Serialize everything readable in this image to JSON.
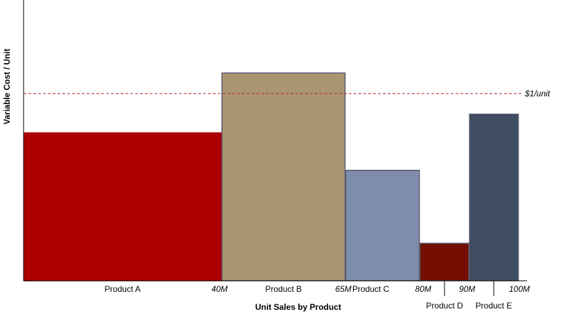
{
  "chart_data": {
    "type": "bar",
    "subtype": "variable-width (marimekko)",
    "ylabel": "Variable Cost / Unit",
    "xlabel": "Unit Sales by Product",
    "reference_line": {
      "label": "$1/unit",
      "value": 1.0,
      "style": "dashed",
      "color": "#b22222"
    },
    "boundary_labels": [
      "40M",
      "65M",
      "80M",
      "90M",
      "100M"
    ],
    "series": [
      {
        "name": "Product A",
        "start": 0,
        "end": 40,
        "value": 0.79,
        "color": "#ac0000"
      },
      {
        "name": "Product B",
        "start": 40,
        "end": 65,
        "value": 1.11,
        "color": "#ab9571"
      },
      {
        "name": "Product C",
        "start": 65,
        "end": 80,
        "value": 0.59,
        "color": "#7e8dab"
      },
      {
        "name": "Product D",
        "start": 80,
        "end": 90,
        "value": 0.2,
        "color": "#730e00"
      },
      {
        "name": "Product E",
        "start": 90,
        "end": 100,
        "value": 0.89,
        "color": "#3f4e60"
      }
    ],
    "xlim": [
      0,
      100
    ],
    "ylim": [
      0,
      1.5
    ]
  }
}
